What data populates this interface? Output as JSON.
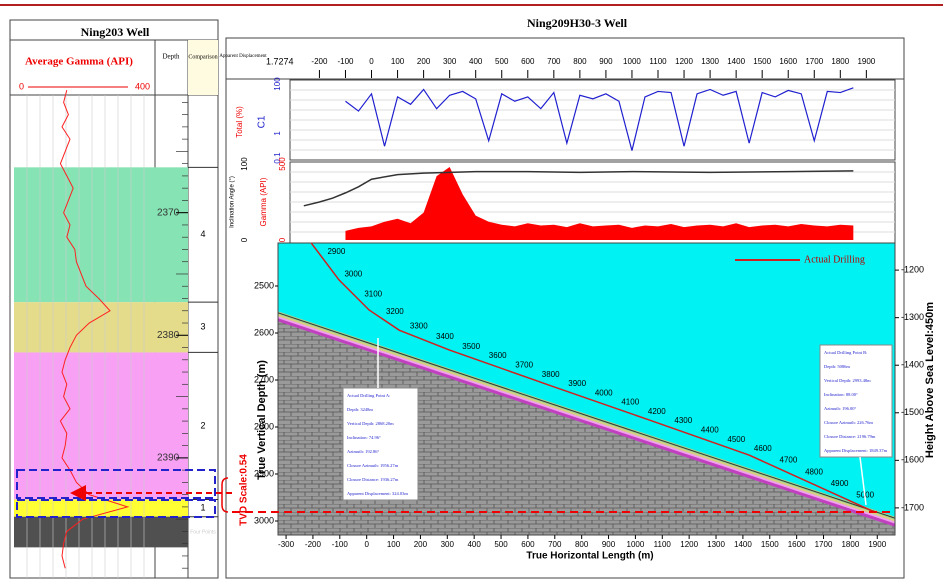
{
  "left": {
    "title": "Ning203 Well",
    "curve_label": "Average Gamma (API)",
    "scale": [
      0,
      400
    ],
    "depth_header": "Depth",
    "comparison_header": "Comparison",
    "depth_range": [
      2360.4,
      2399.8
    ],
    "depth_ticks": [
      2370,
      2380,
      2390
    ],
    "zones": [
      {
        "label": "4",
        "top": 2366.3,
        "bottom": 2377.3,
        "color": "#86e4b4"
      },
      {
        "label": "3",
        "top": 2377.3,
        "bottom": 2381.4,
        "color": "#e4dc8a"
      },
      {
        "label": "2",
        "top": 2381.4,
        "bottom": 2393.4,
        "color": "#f8a0f4"
      },
      {
        "label": "1",
        "top": 2393.4,
        "bottom": 2394.8,
        "color": "#ffff33"
      },
      {
        "label": "Four Points",
        "top": 2394.8,
        "bottom": 2397.3,
        "color": "#505050"
      }
    ],
    "gamma": {
      "depth": [
        2360,
        2361,
        2362,
        2363,
        2364,
        2365,
        2366,
        2367,
        2368,
        2369,
        2370,
        2371,
        2372,
        2373,
        2374,
        2375,
        2376,
        2377,
        2378,
        2379,
        2380,
        2381,
        2382,
        2383,
        2384,
        2385,
        2386,
        2387,
        2388,
        2389,
        2390,
        2391,
        2392,
        2393,
        2394,
        2395,
        2396,
        2397,
        2398,
        2399
      ],
      "values": [
        140,
        130,
        145,
        125,
        150,
        135,
        120,
        140,
        160,
        145,
        130,
        150,
        140,
        165,
        170,
        185,
        200,
        240,
        275,
        210,
        170,
        150,
        135,
        125,
        140,
        130,
        150,
        120,
        140,
        135,
        125,
        150,
        170,
        210,
        330,
        190,
        140,
        130,
        125,
        135
      ],
      "color": "#ff2020"
    }
  },
  "right": {
    "title": "Ning209H30-3 Well",
    "apparent_label": "Apparent Displacement",
    "apparent_value": "1.7274",
    "top_xlim": [
      -313,
      2010
    ],
    "top_xticks": [
      -200,
      -100,
      0,
      100,
      200,
      300,
      400,
      500,
      600,
      700,
      800,
      900,
      1000,
      1100,
      1200,
      1300,
      1400,
      1500,
      1600,
      1700,
      1800,
      1900
    ],
    "c1": {
      "label": "C1",
      "unit_label": "Total (%)",
      "ylim": [
        0.1,
        100
      ],
      "yticks": [
        0.1,
        1,
        100
      ],
      "log": true,
      "color": "#2020d0",
      "color2": "#ff2020",
      "x": [
        -100,
        -50,
        0,
        50,
        100,
        150,
        200,
        250,
        300,
        350,
        400,
        450,
        500,
        550,
        600,
        650,
        700,
        750,
        800,
        850,
        900,
        950,
        1000,
        1050,
        1100,
        1150,
        1200,
        1250,
        1300,
        1350,
        1400,
        1450,
        1500,
        1550,
        1600,
        1650,
        1700,
        1750,
        1800,
        1850
      ],
      "values": [
        20,
        8,
        40,
        0.3,
        30,
        15,
        60,
        10,
        35,
        50,
        25,
        0.5,
        40,
        20,
        30,
        10,
        45,
        0.4,
        35,
        25,
        40,
        20,
        0.2,
        30,
        50,
        45,
        0.3,
        40,
        60,
        35,
        50,
        0.4,
        45,
        30,
        55,
        40,
        0.5,
        50,
        45,
        70
      ]
    },
    "gamma_track": {
      "label": "Gamma (API)",
      "ylim": [
        0,
        500
      ],
      "yticks": [
        0,
        500
      ],
      "color": "#ff0000",
      "x": [
        -100,
        -50,
        0,
        50,
        100,
        150,
        200,
        250,
        300,
        350,
        400,
        450,
        500,
        550,
        600,
        650,
        700,
        750,
        800,
        850,
        900,
        950,
        1000,
        1050,
        1100,
        1150,
        1200,
        1250,
        1300,
        1350,
        1400,
        1450,
        1500,
        1550,
        1600,
        1650,
        1700,
        1750,
        1800,
        1850
      ],
      "values": [
        60,
        80,
        90,
        120,
        140,
        110,
        180,
        420,
        480,
        300,
        160,
        120,
        100,
        90,
        110,
        95,
        100,
        85,
        110,
        90,
        95,
        100,
        80,
        95,
        90,
        105,
        85,
        95,
        100,
        90,
        110,
        85,
        95,
        100,
        90,
        105,
        95,
        90,
        100,
        95
      ]
    },
    "incl_track": {
      "label": "Inclination Angle (°)",
      "ylim": [
        0,
        100
      ],
      "yticks": [
        0,
        100
      ],
      "color": "#333333",
      "x": [
        -260,
        -200,
        -150,
        -100,
        -50,
        0,
        100,
        200,
        300,
        400,
        600,
        800,
        1000,
        1300,
        1600,
        1850
      ],
      "values": [
        45,
        50,
        55,
        62,
        70,
        80,
        86,
        88,
        89,
        90,
        90,
        89,
        90,
        89,
        90,
        91
      ]
    },
    "main": {
      "xlabel": "True Horizontal Length (m)",
      "ylabel": "True Vertical Depth (m)",
      "y2label": "Height Above Sea Level:450m",
      "scale_label": "TVD Scale:0.54",
      "legend": "Actual Drilling",
      "trajectory_color": "#d02020",
      "xlim": [
        -330,
        1966
      ],
      "ylim": [
        2408.5,
        3029.8
      ],
      "y2lim": [
        -1143,
        -1757
      ],
      "xticks": [
        -300,
        -200,
        -100,
        0,
        100,
        200,
        300,
        400,
        500,
        600,
        700,
        800,
        900,
        1000,
        1100,
        1200,
        1300,
        1400,
        1500,
        1600,
        1700,
        1800,
        1900
      ],
      "yticks": [
        2500,
        2600,
        2700,
        2800,
        2900,
        3000
      ],
      "y2ticks": [
        -1200,
        -1300,
        -1400,
        -1500,
        -1600,
        -1700
      ],
      "formation_top": {
        "x": [
          -330,
          1966
        ],
        "tvd": [
          2557,
          2994
        ]
      },
      "trajectory": {
        "x": [
          -207,
          -103,
          9,
          121,
          307,
          679,
          1051,
          1424,
          1833,
          1889
        ],
        "tvd": [
          2408,
          2487,
          2551,
          2594,
          2636,
          2711,
          2785,
          2860,
          2966,
          2981
        ]
      },
      "md_labels": [
        2900,
        3000,
        3100,
        3200,
        3300,
        3400,
        3500,
        3600,
        3700,
        3800,
        3900,
        4000,
        4100,
        4200,
        4300,
        4400,
        4500,
        4600,
        4700,
        4800,
        4900,
        5000
      ],
      "box_a": [
        "Actual Drilling Point A:",
        "Depth: 3248m",
        "Vertical Depth: 2868.20m",
        "Inclination: 74.96°",
        "Azimuth: 192.86°",
        "Closure Azimuth: 1956.27m",
        "Closure Distance: 1936.27m",
        "Apparent Displacement: 324.03m"
      ],
      "box_b": [
        "Actual Drilling Point B:",
        "Depth: 5086m",
        "Vertical Depth: 2993.48m",
        "Inclination: 88.00°",
        "Azimuth: 196.00°",
        "Closure Azimuth: 226.76m",
        "Closure Distance: 2196.79m",
        "Apparent Displacement: 1849.37m"
      ]
    }
  }
}
